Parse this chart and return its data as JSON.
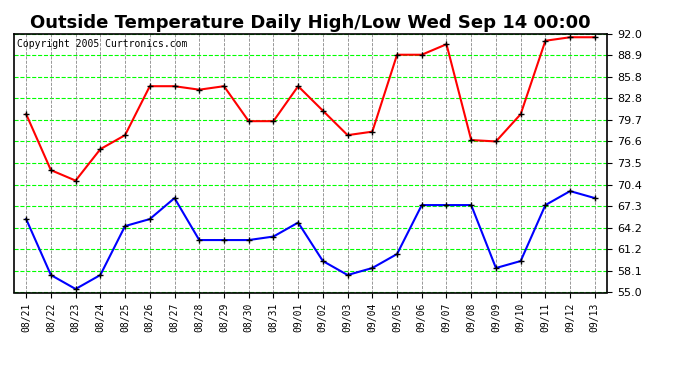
{
  "title": "Outside Temperature Daily High/Low Wed Sep 14 00:00",
  "copyright": "Copyright 2005 Curtronics.com",
  "x_labels": [
    "08/21",
    "08/22",
    "08/23",
    "08/24",
    "08/25",
    "08/26",
    "08/27",
    "08/28",
    "08/29",
    "08/30",
    "08/31",
    "09/01",
    "09/02",
    "09/03",
    "09/04",
    "09/05",
    "09/06",
    "09/07",
    "09/08",
    "09/09",
    "09/10",
    "09/11",
    "09/12",
    "09/13"
  ],
  "high_temps": [
    80.5,
    72.5,
    71.0,
    75.5,
    77.5,
    84.5,
    84.5,
    84.0,
    84.5,
    79.5,
    79.5,
    84.5,
    81.0,
    77.5,
    78.0,
    89.0,
    89.0,
    90.5,
    76.8,
    76.6,
    80.5,
    91.0,
    91.5,
    91.5
  ],
  "low_temps": [
    65.5,
    57.5,
    55.5,
    57.5,
    64.5,
    65.5,
    68.5,
    62.5,
    62.5,
    62.5,
    63.0,
    65.0,
    59.5,
    57.5,
    58.5,
    60.5,
    67.5,
    67.5,
    67.5,
    58.5,
    59.5,
    67.5,
    69.5,
    68.5
  ],
  "high_color": "#ff0000",
  "low_color": "#0000ff",
  "bg_color": "#ffffff",
  "plot_bg_color": "#ffffff",
  "grid_major_color": "#00ff00",
  "grid_minor_color": "#aaaaaa",
  "ylim": [
    55.0,
    92.0
  ],
  "yticks": [
    55.0,
    58.1,
    61.2,
    64.2,
    67.3,
    70.4,
    73.5,
    76.6,
    79.7,
    82.8,
    85.8,
    88.9,
    92.0
  ],
  "title_fontsize": 13,
  "marker": "+",
  "marker_size": 5,
  "line_width": 1.5,
  "tick_label_fontsize": 8,
  "xtick_fontsize": 7
}
